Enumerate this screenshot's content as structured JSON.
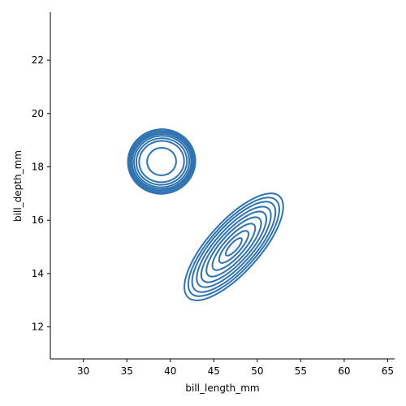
{
  "chart_data": {
    "type": "kde-contour",
    "xlabel": "bill_length_mm",
    "ylabel": "bill_depth_mm",
    "xlim": [
      26.2,
      65.8
    ],
    "ylim": [
      10.8,
      23.8
    ],
    "xticks": [
      30,
      35,
      40,
      45,
      50,
      55,
      60,
      65
    ],
    "yticks": [
      12,
      14,
      16,
      18,
      20,
      22
    ],
    "grid": false,
    "legend": "none",
    "color": "#2f73b1",
    "series": [
      {
        "center": [
          39.0,
          18.2
        ],
        "contour_levels": [
          {
            "rx": 3.6,
            "ry": 1.22,
            "rotation_deg": -8
          },
          {
            "rx": 3.45,
            "ry": 1.16,
            "rotation_deg": -8
          },
          {
            "rx": 3.3,
            "ry": 1.1,
            "rotation_deg": -8
          },
          {
            "rx": 3.15,
            "ry": 1.04,
            "rotation_deg": -8
          },
          {
            "rx": 2.95,
            "ry": 0.97,
            "rotation_deg": -8
          },
          {
            "rx": 2.7,
            "ry": 0.88,
            "rotation_deg": -8
          },
          {
            "rx": 2.4,
            "ry": 0.78,
            "rotation_deg": -8
          },
          {
            "rx": 1.55,
            "ry": 0.52,
            "rotation_deg": -8
          }
        ]
      },
      {
        "center": [
          47.3,
          15.0
        ],
        "contour_levels": [
          {
            "rx": 3.3,
            "ry": 1.35,
            "rotation_deg": -48
          },
          {
            "rx": 3.05,
            "ry": 1.22,
            "rotation_deg": -48
          },
          {
            "rx": 2.8,
            "ry": 1.1,
            "rotation_deg": -48
          },
          {
            "rx": 2.5,
            "ry": 0.96,
            "rotation_deg": -48
          },
          {
            "rx": 2.2,
            "ry": 0.82,
            "rotation_deg": -48
          },
          {
            "rx": 1.85,
            "ry": 0.68,
            "rotation_deg": -48
          },
          {
            "rx": 1.45,
            "ry": 0.52,
            "rotation_deg": -48
          },
          {
            "rx": 1.0,
            "ry": 0.36,
            "rotation_deg": -48
          },
          {
            "rx": 0.55,
            "ry": 0.2,
            "rotation_deg": -48
          }
        ]
      }
    ]
  }
}
